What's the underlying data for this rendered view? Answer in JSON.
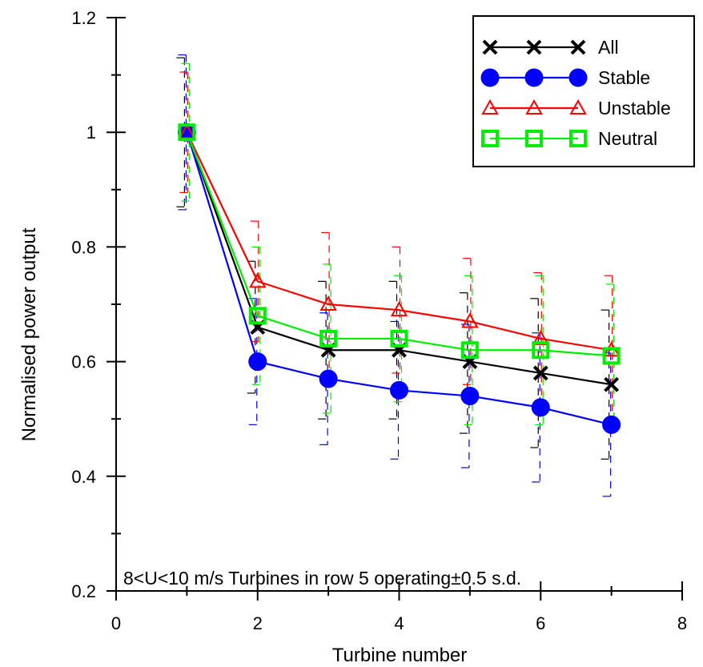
{
  "chart_data": {
    "type": "line",
    "title": "",
    "xlabel": "Turbine number",
    "ylabel": "Normalised power output",
    "xlim": [
      0,
      8
    ],
    "ylim": [
      0.2,
      1.2
    ],
    "xticks": [
      0,
      2,
      4,
      6,
      8
    ],
    "yticks": [
      0.2,
      0.4,
      0.6,
      0.8,
      1,
      1.2
    ],
    "xtick_labels": [
      "0",
      "2",
      "4",
      "6",
      "8"
    ],
    "ytick_labels": [
      "0.2",
      "0.4",
      "0.6",
      "0.8",
      "1",
      "1.2"
    ],
    "annotation": "8<U<10 m/s Turbines in row 5 operating±0.5 s.d.",
    "legend_position": "top-right",
    "x": [
      1,
      2,
      3,
      4,
      5,
      6,
      7
    ],
    "series": [
      {
        "name": "All",
        "color": "#000000",
        "marker": "x",
        "values": [
          1.0,
          0.66,
          0.62,
          0.62,
          0.6,
          0.58,
          0.56
        ],
        "err_lower": [
          0.87,
          0.545,
          0.5,
          0.5,
          0.475,
          0.45,
          0.43
        ],
        "err_upper": [
          1.13,
          0.775,
          0.74,
          0.74,
          0.72,
          0.71,
          0.69
        ]
      },
      {
        "name": "Stable",
        "color": "#0000ff",
        "marker": "circle",
        "values": [
          1.0,
          0.6,
          0.57,
          0.55,
          0.54,
          0.52,
          0.49
        ],
        "err_lower": [
          0.865,
          0.49,
          0.455,
          0.43,
          0.415,
          0.39,
          0.365
        ],
        "err_upper": [
          1.135,
          0.71,
          0.685,
          0.67,
          0.665,
          0.65,
          0.615
        ]
      },
      {
        "name": "Unstable",
        "color": "#ff0000",
        "marker": "triangle",
        "values": [
          1.0,
          0.74,
          0.7,
          0.69,
          0.67,
          0.64,
          0.62
        ],
        "err_lower": [
          0.895,
          0.635,
          0.575,
          0.58,
          0.56,
          0.525,
          0.49
        ],
        "err_upper": [
          1.105,
          0.845,
          0.825,
          0.8,
          0.78,
          0.755,
          0.75
        ]
      },
      {
        "name": "Neutral",
        "color": "#00ee00",
        "marker": "square",
        "values": [
          1.0,
          0.68,
          0.64,
          0.64,
          0.62,
          0.62,
          0.61
        ],
        "err_lower": [
          0.88,
          0.56,
          0.51,
          0.53,
          0.49,
          0.49,
          0.485
        ],
        "err_upper": [
          1.12,
          0.8,
          0.77,
          0.75,
          0.75,
          0.75,
          0.735
        ]
      }
    ]
  }
}
